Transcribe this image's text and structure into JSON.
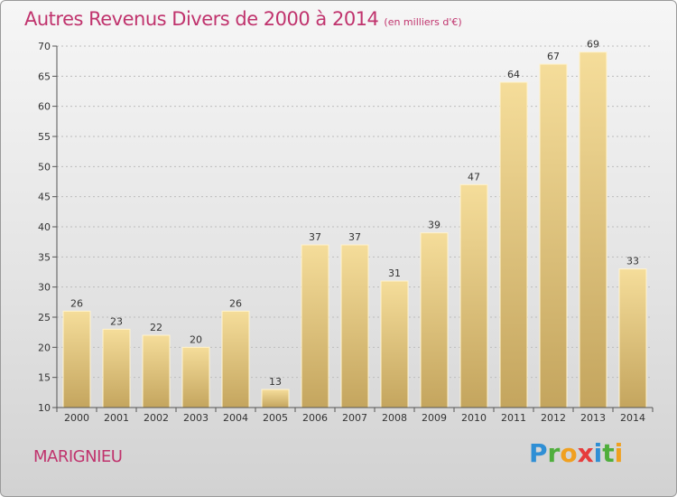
{
  "header": {
    "title": "Autres Revenus Divers de 2000 à 2014",
    "unit": "(en milliers d'€)"
  },
  "footer": {
    "commune": "MARIGNIEU",
    "logo_letters": [
      "P",
      "r",
      "o",
      "x",
      "i",
      "t",
      "i"
    ]
  },
  "colors": {
    "accent": "#c0336d",
    "bar_light": "#f5dd9a",
    "bar_dark": "#c4a55e",
    "grid": "#bcbcbc"
  },
  "chart_data": {
    "type": "bar",
    "title": "Autres Revenus Divers de 2000 à 2014",
    "subtitle": "(en milliers d'€)",
    "xlabel": "",
    "ylabel": "",
    "categories": [
      "2000",
      "2001",
      "2002",
      "2003",
      "2004",
      "2005",
      "2006",
      "2007",
      "2008",
      "2009",
      "2010",
      "2011",
      "2012",
      "2013",
      "2014"
    ],
    "values": [
      26,
      23,
      22,
      20,
      26,
      13,
      37,
      37,
      31,
      39,
      47,
      64,
      67,
      69,
      33
    ],
    "ylim": [
      10,
      70
    ],
    "yticks": [
      10,
      15,
      20,
      25,
      30,
      35,
      40,
      45,
      50,
      55,
      60,
      65,
      70
    ],
    "grid": "horizontal",
    "legend": "none"
  }
}
